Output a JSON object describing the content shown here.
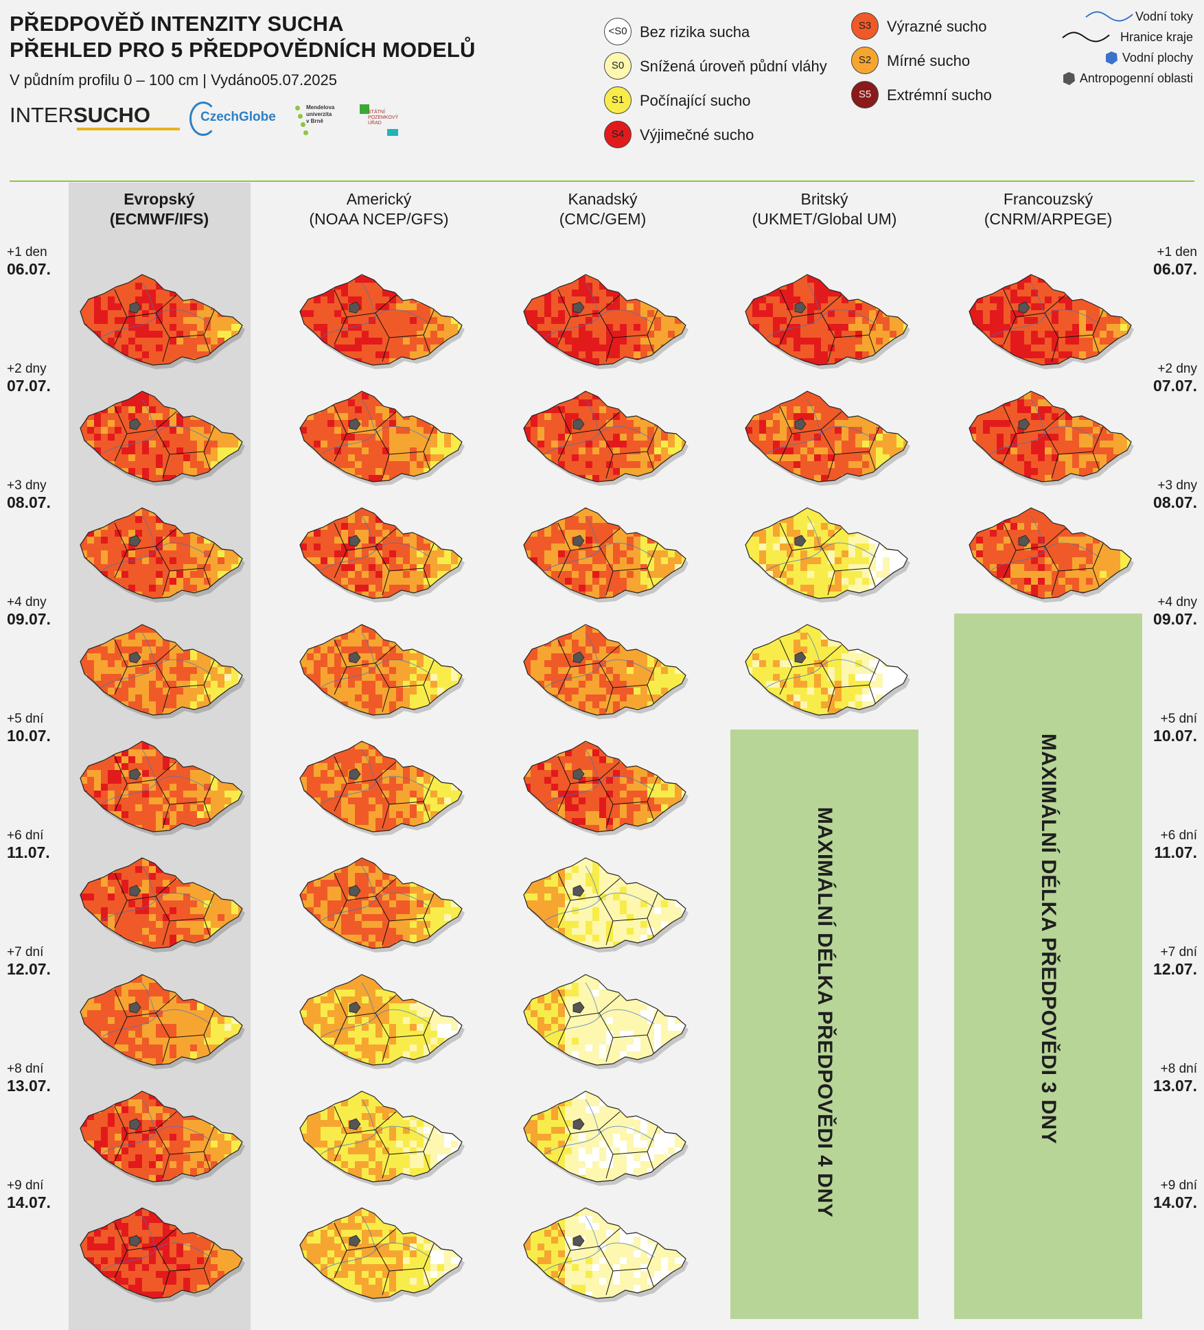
{
  "header": {
    "title_line1": "PŘEDPOVĚĎ INTENZITY SUCHA",
    "title_line2": "PŘEHLED PRO 5 PŘEDPOVĚDNÍCH MODELŮ",
    "subtitle": "V půdním profilu 0 – 100 cm | Vydáno05.07.2025"
  },
  "logos": {
    "intersucho_part1": "INTER",
    "intersucho_part2": "SUCHO",
    "czechglobe": "CzechGlobe",
    "mendel_line1": "Mendelova",
    "mendel_line2": "univerzita",
    "mendel_line3": "v Brně",
    "spu_line1": "STÁTNÍ",
    "spu_line2": "POZEMKOVÝ",
    "spu_line3": "ÚŘAD"
  },
  "legend": {
    "categories": [
      {
        "code": "<S0",
        "label": "Bez rizika sucha",
        "color": "#ffffff"
      },
      {
        "code": "S0",
        "label": "Snížená úroveň půdní vláhy",
        "color": "#fdf7b0"
      },
      {
        "code": "S1",
        "label": "Počínající sucho",
        "color": "#f8ec4a"
      },
      {
        "code": "S4",
        "label": "Výjimečné sucho",
        "color": "#e31a1c"
      },
      {
        "code": "S3",
        "label": "Výrazné sucho",
        "color": "#f05a28"
      },
      {
        "code": "S2",
        "label": "Mírné sucho",
        "color": "#f7a531"
      },
      {
        "code": "S5",
        "label": "Extrémní sucho",
        "color": "#8b1a1a"
      }
    ],
    "map_features": [
      {
        "label": "Vodní toky",
        "icon": "river-line-icon",
        "color": "#3a73c9"
      },
      {
        "label": "Hranice kraje",
        "icon": "border-line-icon",
        "color": "#111111"
      },
      {
        "label": "Vodní plochy",
        "icon": "water-body-icon",
        "color": "#3a73c9"
      },
      {
        "label": "Antropogenní oblasti",
        "icon": "urban-area-icon",
        "color": "#555555"
      }
    ]
  },
  "models": [
    {
      "line1": "Evropský",
      "line2": "(ECMWF/IFS)",
      "highlighted": true
    },
    {
      "line1": "Americký",
      "line2": "(NOAA NCEP/GFS)",
      "highlighted": false
    },
    {
      "line1": "Kanadský",
      "line2": "(CMC/GEM)",
      "highlighted": false
    },
    {
      "line1": "Britský",
      "line2": "(UKMET/Global UM)",
      "highlighted": false
    },
    {
      "line1": "Francouzský",
      "line2": "(CNRM/ARPEGE)",
      "highlighted": false
    }
  ],
  "rows": [
    {
      "offset": "+1 den",
      "date": "06.07."
    },
    {
      "offset": "+2 dny",
      "date": "07.07."
    },
    {
      "offset": "+3 dny",
      "date": "08.07."
    },
    {
      "offset": "+4 dny",
      "date": "09.07."
    },
    {
      "offset": "+5 dní",
      "date": "10.07."
    },
    {
      "offset": "+6 dní",
      "date": "11.07."
    },
    {
      "offset": "+7 dní",
      "date": "12.07."
    },
    {
      "offset": "+8 dní",
      "date": "13.07."
    },
    {
      "offset": "+9 dní",
      "date": "14.07."
    }
  ],
  "drought_severity_by_model": [
    [
      4.3,
      4.1,
      4.0,
      3.6,
      3.9,
      4.0,
      3.7,
      4.0,
      4.5
    ],
    [
      4.3,
      3.9,
      3.9,
      3.4,
      3.7,
      3.6,
      2.7,
      2.4,
      2.6
    ],
    [
      4.4,
      4.1,
      3.8,
      3.6,
      4.0,
      1.6,
      1.3,
      1.2,
      1.3
    ],
    [
      4.3,
      3.9,
      2.2,
      2.1
    ],
    [
      4.4,
      4.2,
      4.0
    ]
  ],
  "notices": [
    {
      "text": "MAXIMÁLNÍ DÉLKA PŘEDPOVĚDI 4 DNY",
      "model_index": 3
    },
    {
      "text": "MAXIMÁLNÍ DÉLKA PŘEDPOVĚDI 3 DNY",
      "model_index": 4
    }
  ]
}
